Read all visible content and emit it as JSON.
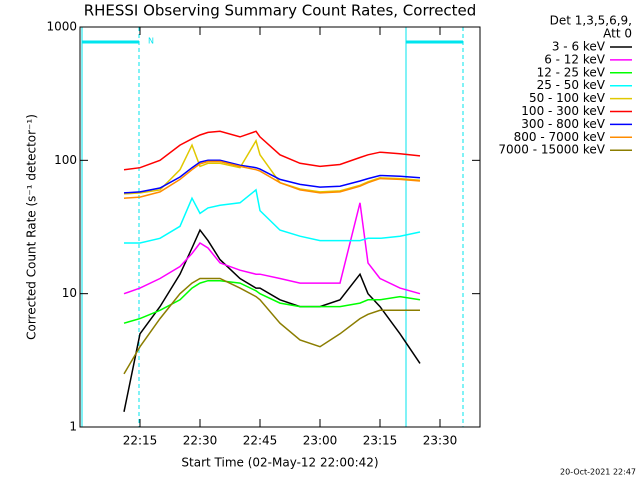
{
  "chart_data": {
    "type": "line",
    "title": "RHESSI Observing Summary Count Rates, Corrected",
    "x_label": "Start Time (02-May-12 22:00:42)",
    "y_label": "Corrected Count Rate (s⁻¹ detector⁻¹)",
    "legend_title": [
      "Det 1,3,5,6,9,",
      "Att 0"
    ],
    "annotation": "N",
    "footer": "20-Oct-2021 22:47",
    "log_scale_y": true,
    "legend": "outside-right",
    "xlim": [
      0,
      100
    ],
    "xticks": [
      {
        "value": 15,
        "label": "22:15"
      },
      {
        "value": 30,
        "label": "22:30"
      },
      {
        "value": 45,
        "label": "22:45"
      },
      {
        "value": 60,
        "label": "23:00"
      },
      {
        "value": 75,
        "label": "23:15"
      },
      {
        "value": 90,
        "label": "23:30"
      }
    ],
    "ylim": [
      1,
      1000
    ],
    "yticks": [
      1,
      10,
      100,
      1000
    ],
    "x": [
      11,
      15,
      20,
      25,
      28,
      30,
      32,
      35,
      40,
      44,
      45,
      50,
      55,
      60,
      65,
      70,
      72,
      75,
      80,
      85
    ],
    "series": [
      {
        "name": "3 - 6 keV",
        "color": "#000000",
        "values": [
          1.3,
          5,
          8,
          14,
          22,
          30,
          25,
          18,
          13,
          11,
          11,
          9,
          8,
          8,
          9,
          14,
          10,
          8,
          5,
          3
        ]
      },
      {
        "name": "6 - 12 keV",
        "color": "#ff00ff",
        "values": [
          10,
          11,
          13,
          16,
          20,
          24,
          22,
          17,
          15,
          14,
          14,
          13,
          12,
          12,
          12,
          48,
          17,
          13,
          11,
          10
        ]
      },
      {
        "name": "12 - 25 keV",
        "color": "#00ff00",
        "values": [
          6,
          6.5,
          7.5,
          9,
          11,
          12,
          12.5,
          12.5,
          12,
          10.5,
          10,
          8.5,
          8,
          8,
          8,
          8.5,
          9,
          9,
          9.5,
          9
        ]
      },
      {
        "name": "25 - 50 keV",
        "color": "#00ffff",
        "values": [
          24,
          24,
          26,
          32,
          52,
          40,
          44,
          46,
          48,
          60,
          42,
          30,
          27,
          25,
          25,
          25,
          26,
          26,
          27,
          29
        ]
      },
      {
        "name": "50 - 100 keV",
        "color": "#e0c800",
        "values": [
          56,
          57,
          60,
          85,
          130,
          90,
          95,
          95,
          88,
          140,
          110,
          68,
          61,
          58,
          59,
          65,
          69,
          74,
          73,
          71
        ]
      },
      {
        "name": "100 - 300 keV",
        "color": "#ff0000",
        "values": [
          85,
          88,
          100,
          130,
          145,
          155,
          162,
          165,
          150,
          165,
          150,
          110,
          95,
          90,
          93,
          105,
          110,
          115,
          112,
          108
        ]
      },
      {
        "name": "300 - 800 keV",
        "color": "#0000ff",
        "values": [
          57,
          58,
          62,
          75,
          88,
          97,
          100,
          100,
          92,
          88,
          86,
          72,
          66,
          63,
          64,
          70,
          73,
          77,
          76,
          74
        ]
      },
      {
        "name": "800 - 7000 keV",
        "color": "#ff8c00",
        "values": [
          52,
          53,
          58,
          72,
          85,
          94,
          98,
          98,
          90,
          85,
          83,
          68,
          60,
          57,
          58,
          64,
          68,
          73,
          72,
          70
        ]
      },
      {
        "name": "7000 - 15000 keV",
        "color": "#8b7d00",
        "values": [
          2.5,
          4,
          6.5,
          10,
          12,
          13,
          13,
          13,
          11,
          9.5,
          9,
          6,
          4.5,
          4,
          5,
          6.5,
          7,
          7.5,
          7.5,
          7.5
        ]
      }
    ]
  }
}
